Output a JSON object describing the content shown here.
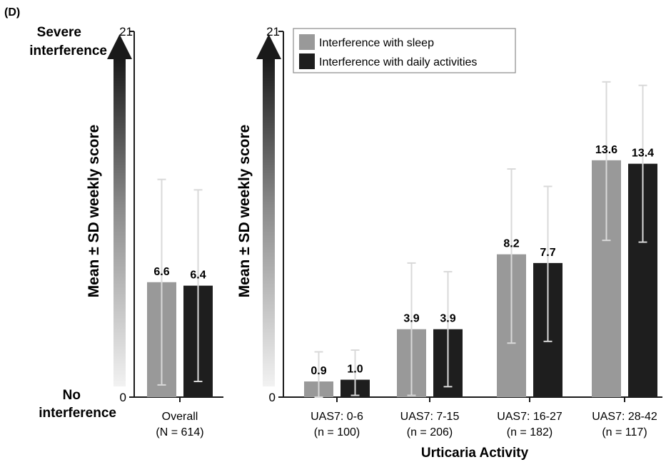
{
  "panel_label": "(D)",
  "scale": {
    "top_label_line1": "Severe",
    "top_label_line2": "interference",
    "bottom_label_line1": "No",
    "bottom_label_line2": "interference"
  },
  "colors": {
    "sleep": "#999999",
    "daily": "#1e1e1e",
    "error_bar": "#d9d9d9",
    "axis": "#1a1a1a"
  },
  "chart_data": [
    {
      "type": "bar",
      "ylabel": "Mean ± SD weekly score",
      "ylim": [
        0,
        21
      ],
      "yticks": [
        "0",
        "21"
      ],
      "categories": [
        {
          "line1": "Overall",
          "line2": "(N = 614)"
        }
      ],
      "series": [
        {
          "name": "Interference with sleep",
          "values": [
            6.6
          ],
          "labels": [
            "6.6"
          ],
          "err_low": [
            0.7
          ],
          "err_high": [
            12.5
          ]
        },
        {
          "name": "Interference with daily activities",
          "values": [
            6.4
          ],
          "labels": [
            "6.4"
          ],
          "err_low": [
            0.9
          ],
          "err_high": [
            11.9
          ]
        }
      ]
    },
    {
      "type": "bar",
      "ylabel": "Mean ± SD weekly score",
      "xlabel": "Urticaria Activity",
      "ylim": [
        0,
        21
      ],
      "yticks": [
        "0",
        "21"
      ],
      "legend": "top-left",
      "categories": [
        {
          "line1": "UAS7: 0-6",
          "line2": "(n = 100)"
        },
        {
          "line1": "UAS7: 7-15",
          "line2": "(n = 206)"
        },
        {
          "line1": "UAS7: 16-27",
          "line2": "(n = 182)"
        },
        {
          "line1": "UAS7: 28-42",
          "line2": "(n = 117)"
        }
      ],
      "series": [
        {
          "name": "Interference with sleep",
          "values": [
            0.9,
            3.9,
            8.2,
            13.6
          ],
          "labels": [
            "0.9",
            "3.9",
            "8.2",
            "13.6"
          ],
          "err_low": [
            0,
            0.1,
            3.1,
            9.0
          ],
          "err_high": [
            2.6,
            7.7,
            13.1,
            18.1
          ]
        },
        {
          "name": "Interference with daily activities",
          "values": [
            1.0,
            3.9,
            7.7,
            13.4
          ],
          "labels": [
            "1.0",
            "3.9",
            "7.7",
            "13.4"
          ],
          "err_low": [
            0.1,
            0.6,
            3.2,
            8.9
          ],
          "err_high": [
            2.7,
            7.2,
            12.1,
            17.9
          ]
        }
      ]
    }
  ]
}
